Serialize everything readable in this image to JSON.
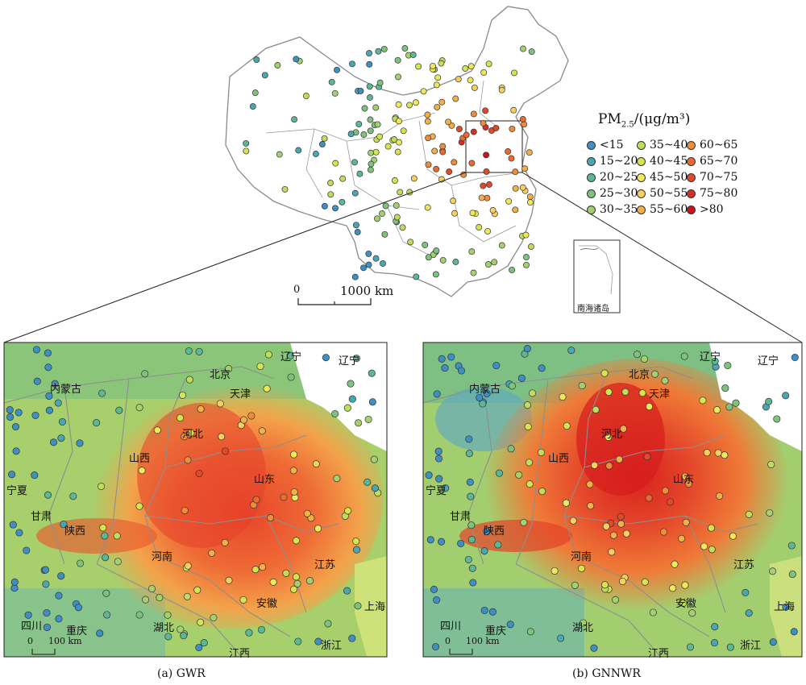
{
  "legend": {
    "title_main": "PM",
    "title_sub": "2.5",
    "title_rest": "/(μg/m³)",
    "classes": [
      {
        "label": "<15",
        "color": "#3d8fc4"
      },
      {
        "label": "15~20",
        "color": "#4aa6b0"
      },
      {
        "label": "20~25",
        "color": "#5bb794"
      },
      {
        "label": "25~30",
        "color": "#7ec37d"
      },
      {
        "label": "30~35",
        "color": "#a3d16e"
      },
      {
        "label": "35~40",
        "color": "#bfdc5c"
      },
      {
        "label": "40~45",
        "color": "#d6e54e"
      },
      {
        "label": "45~50",
        "color": "#eee85a"
      },
      {
        "label": "50~55",
        "color": "#f5d060"
      },
      {
        "label": "55~60",
        "color": "#f2b049"
      },
      {
        "label": "60~65",
        "color": "#ee8c3a"
      },
      {
        "label": "65~70",
        "color": "#e86b30"
      },
      {
        "label": "70~75",
        "color": "#e04a2a"
      },
      {
        "label": "75~80",
        "color": "#d82e24"
      },
      {
        "label": ">80",
        "color": "#c8141c"
      }
    ]
  },
  "overview_map": {
    "scale_zero": "0",
    "scale_label": "1000 km",
    "inset_label": "南海诸岛"
  },
  "panels": [
    {
      "caption": "(a) GWR",
      "scale_zero": "0",
      "scale_label": "100 km",
      "provinces": [
        "辽宁",
        "辽宁",
        "内蒙古",
        "北京",
        "天津",
        "河北",
        "山西",
        "山东",
        "宁夏",
        "甘肃",
        "陕西",
        "河南",
        "江苏",
        "安徽",
        "上海",
        "四川",
        "重庆",
        "湖北",
        "江西",
        "浙江"
      ]
    },
    {
      "caption": "(b) GNNWR",
      "scale_zero": "0",
      "scale_label": "100 km",
      "provinces": [
        "辽宁",
        "辽宁",
        "内蒙古",
        "北京",
        "天津",
        "河北",
        "山西",
        "山东",
        "宁夏",
        "甘肃",
        "陕西",
        "河南",
        "江苏",
        "安徽",
        "上海",
        "四川",
        "重庆",
        "湖北",
        "江西",
        "浙江"
      ]
    }
  ]
}
